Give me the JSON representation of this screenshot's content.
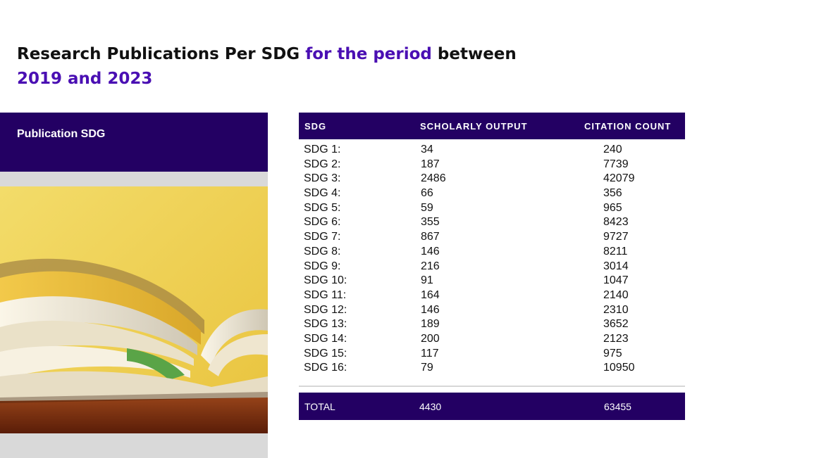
{
  "title": {
    "part1": "Research Publications Per SDG",
    "part2": "for the period",
    "part3": "between",
    "line2": "2019 and  2023"
  },
  "left_panel": {
    "label": "Publication SDG"
  },
  "table": {
    "headers": [
      "SDG",
      "SCHOLARLY OUTPUT",
      "CITATION COUNT"
    ],
    "rows": [
      [
        "SDG 1:",
        "34",
        "240"
      ],
      [
        "SDG 2:",
        "187",
        "7739"
      ],
      [
        "SDG 3:",
        "2486",
        "42079"
      ],
      [
        "SDG 4:",
        "66",
        "356"
      ],
      [
        "SDG 5:",
        "59",
        "965"
      ],
      [
        "SDG 6:",
        "355",
        "8423"
      ],
      [
        "SDG 7:",
        "867",
        "9727"
      ],
      [
        "SDG 8:",
        "146",
        "8211"
      ],
      [
        "SDG 9:",
        "216",
        "3014"
      ],
      [
        "SDG 10:",
        "91",
        "1047"
      ],
      [
        "SDG 11:",
        "164",
        "2140"
      ],
      [
        "SDG 12:",
        "146",
        "2310"
      ],
      [
        "SDG 13:",
        "189",
        "3652"
      ],
      [
        "SDG 14:",
        "200",
        "2123"
      ],
      [
        "SDG 15:",
        "117",
        "975"
      ],
      [
        "SDG 16:",
        "79",
        "10950"
      ]
    ],
    "total": [
      "TOTAL",
      "4430",
      "63455"
    ]
  },
  "colors": {
    "header_bg": "#230063",
    "accent": "#4a0fb3",
    "panel_gray": "#d9d9d9"
  }
}
